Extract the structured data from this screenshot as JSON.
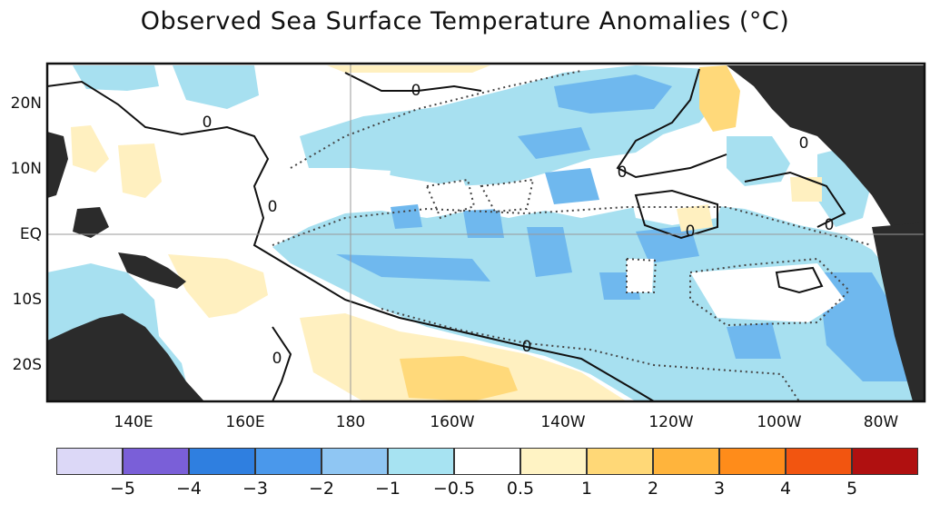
{
  "title": "Observed Sea Surface Temperature Anomalies (°C)",
  "map": {
    "lat_labels": [
      "20N",
      "10N",
      "EQ",
      "10S",
      "20S"
    ],
    "lon_labels": [
      "140E",
      "160E",
      "180",
      "160W",
      "140W",
      "120W",
      "100W",
      "80W"
    ],
    "contour_labels": [
      "0",
      "0",
      "0",
      "0",
      "0",
      "0",
      "0",
      "0",
      "0"
    ],
    "colors": {
      "land": "#2b2b2b",
      "neutral": "#ffffff",
      "cool_light": "#a7e0f0",
      "cool_medium": "#6fb8ee",
      "warm_light": "#fff0c0",
      "warm_medium": "#ffd97a"
    }
  },
  "colorbar": {
    "colors": [
      "#dcd8f7",
      "#7a5fd8",
      "#2f7fe0",
      "#4a98eb",
      "#8fc6f3",
      "#a7e3f2",
      "#ffffff",
      "#fff3c4",
      "#ffd877",
      "#ffb43c",
      "#ff8c1a",
      "#f25510",
      "#b01010"
    ],
    "labels": [
      "−5",
      "−4",
      "−3",
      "−2",
      "−1",
      "−0.5",
      "0.5",
      "1",
      "2",
      "3",
      "4",
      "5"
    ]
  }
}
